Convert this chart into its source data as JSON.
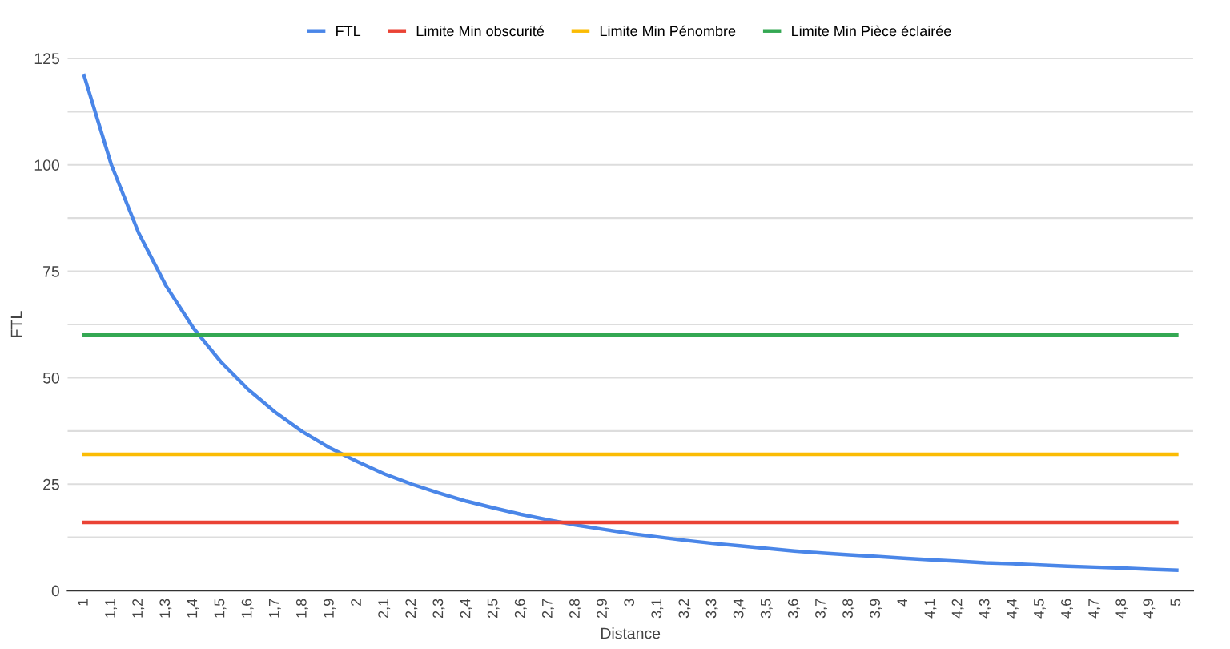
{
  "chart_data": {
    "type": "line",
    "xlabel": "Distance",
    "ylabel": "FTL",
    "categories": [
      "1",
      "1,1",
      "1,2",
      "1,3",
      "1,4",
      "1,5",
      "1,6",
      "1,7",
      "1,8",
      "1,9",
      "2",
      "2,1",
      "2,2",
      "2,3",
      "2,4",
      "2,5",
      "2,6",
      "2,7",
      "2,8",
      "2,9",
      "3",
      "3,1",
      "3,2",
      "3,3",
      "3,4",
      "3,5",
      "3,6",
      "3,7",
      "3,8",
      "3,9",
      "4",
      "4,1",
      "4,2",
      "4,3",
      "4,4",
      "4,5",
      "4,6",
      "4,7",
      "4,8",
      "4,9",
      "5"
    ],
    "series": [
      {
        "name": "FTL",
        "color": "#4a86e8",
        "values": [
          121,
          100,
          84,
          71.6,
          61.7,
          53.8,
          47.3,
          41.9,
          37.3,
          33.5,
          30.3,
          27.4,
          25,
          22.9,
          21,
          19.4,
          17.9,
          16.6,
          15.4,
          14.4,
          13.4,
          12.6,
          11.8,
          11.1,
          10.5,
          9.9,
          9.3,
          8.8,
          8.4,
          8,
          7.6,
          7.2,
          6.9,
          6.5,
          6.3,
          6,
          5.7,
          5.5,
          5.3,
          5,
          4.8
        ]
      },
      {
        "name": "Limite Min obscurité",
        "color": "#ea4335",
        "values": [
          16,
          16,
          16,
          16,
          16,
          16,
          16,
          16,
          16,
          16,
          16,
          16,
          16,
          16,
          16,
          16,
          16,
          16,
          16,
          16,
          16,
          16,
          16,
          16,
          16,
          16,
          16,
          16,
          16,
          16,
          16,
          16,
          16,
          16,
          16,
          16,
          16,
          16,
          16,
          16,
          16
        ]
      },
      {
        "name": "Limite Min Pénombre",
        "color": "#fbbc04",
        "values": [
          32,
          32,
          32,
          32,
          32,
          32,
          32,
          32,
          32,
          32,
          32,
          32,
          32,
          32,
          32,
          32,
          32,
          32,
          32,
          32,
          32,
          32,
          32,
          32,
          32,
          32,
          32,
          32,
          32,
          32,
          32,
          32,
          32,
          32,
          32,
          32,
          32,
          32,
          32,
          32,
          32
        ]
      },
      {
        "name": "Limite Min Pièce éclairée",
        "color": "#34a853",
        "values": [
          60,
          60,
          60,
          60,
          60,
          60,
          60,
          60,
          60,
          60,
          60,
          60,
          60,
          60,
          60,
          60,
          60,
          60,
          60,
          60,
          60,
          60,
          60,
          60,
          60,
          60,
          60,
          60,
          60,
          60,
          60,
          60,
          60,
          60,
          60,
          60,
          60,
          60,
          60,
          60,
          60
        ]
      }
    ],
    "ylim": [
      0,
      125
    ],
    "yticks": [
      0,
      {
        "value": 12.5,
        "label": null
      },
      25,
      {
        "value": 37.5,
        "label": null
      },
      50,
      {
        "value": 62.5,
        "label": null
      },
      75,
      {
        "value": 87.5,
        "label": null
      },
      100,
      {
        "value": 112.5,
        "label": null
      },
      125
    ],
    "grid": "y",
    "legend": "top",
    "marker": "none",
    "line_style": "solid"
  }
}
